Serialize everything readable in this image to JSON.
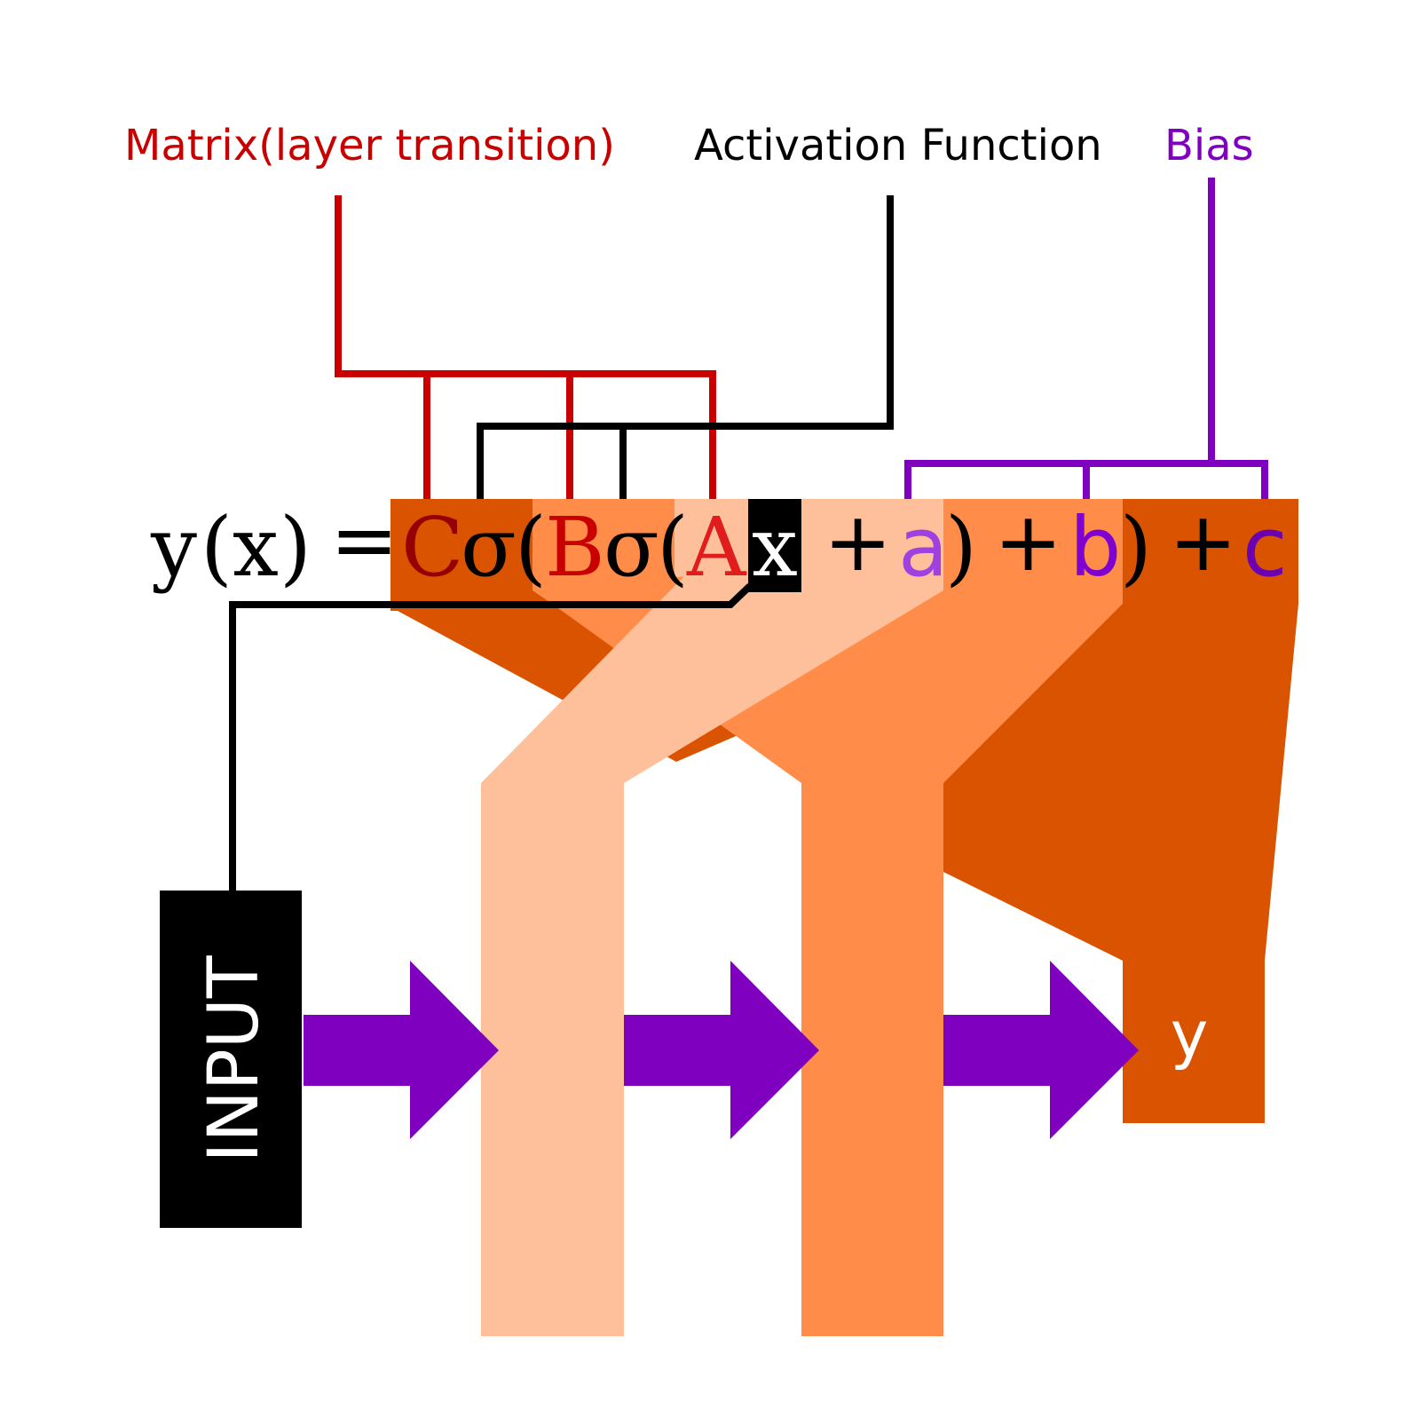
{
  "labels": {
    "matrix": "Matrix(layer transition)",
    "activation": "Activation Function",
    "bias": "Bias"
  },
  "equation": {
    "y": "y",
    "open_paren_1": "(",
    "x_arg": "x",
    "close_paren_1": ")",
    "equals": "=",
    "C": "C",
    "sigma_1": "σ",
    "open_paren_2": "(",
    "B": "B",
    "sigma_2": "σ",
    "open_paren_3": "(",
    "A": "A",
    "x": "x",
    "plus_1": "+",
    "a": "a",
    "close_paren_3": ")",
    "plus_2": "+",
    "b": "b",
    "close_paren_2": ")",
    "plus_3": "+",
    "c": "c"
  },
  "input_label": "INPUT",
  "output_label": "y",
  "colors": {
    "matrix": "#c80000",
    "activation": "#000000",
    "bias": "#8000c0",
    "layer_dark": "#d95300",
    "layer_mid": "#ff8c48",
    "layer_light": "#fdc09a",
    "arrow": "#8000c0",
    "input_box": "#000000"
  }
}
